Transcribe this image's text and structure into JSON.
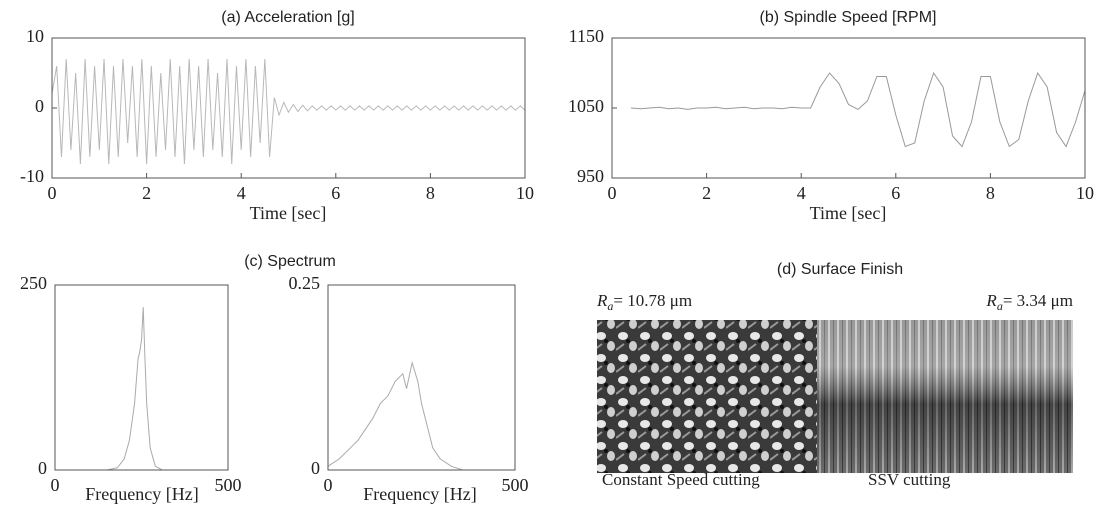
{
  "chart_data": [
    {
      "type": "line",
      "title": "(a) Acceleration  [g]",
      "x_label": "Time [sec]",
      "xlim": [
        0,
        10
      ],
      "xticks": [
        0,
        2,
        4,
        6,
        8,
        10
      ],
      "ylim": [
        -10,
        10
      ],
      "yticks": [
        -10,
        0,
        10
      ],
      "series": [
        {
          "color": "#b8b8b8",
          "x": [
            0,
            0.1,
            0.2,
            0.3,
            0.4,
            0.5,
            0.6,
            0.7,
            0.8,
            0.9,
            1,
            1.1,
            1.2,
            1.3,
            1.4,
            1.5,
            1.6,
            1.7,
            1.8,
            1.9,
            2,
            2.1,
            2.2,
            2.3,
            2.4,
            2.5,
            2.6,
            2.7,
            2.8,
            2.9,
            3,
            3.1,
            3.2,
            3.3,
            3.4,
            3.5,
            3.6,
            3.7,
            3.8,
            3.9,
            4,
            4.1,
            4.2,
            4.3,
            4.4,
            4.5,
            4.6,
            4.7,
            4.8,
            4.9,
            5,
            5.1,
            5.2,
            5.3,
            5.4,
            5.5,
            5.6,
            5.7,
            5.8,
            5.9,
            6,
            6.1,
            6.2,
            6.3,
            6.4,
            6.5,
            6.6,
            6.7,
            6.8,
            6.9,
            7,
            7.1,
            7.2,
            7.3,
            7.4,
            7.5,
            7.6,
            7.7,
            7.8,
            7.9,
            8,
            8.1,
            8.2,
            8.3,
            8.4,
            8.5,
            8.6,
            8.7,
            8.8,
            8.9,
            9,
            9.1,
            9.2,
            9.3,
            9.4,
            9.5,
            9.6,
            9.7,
            9.8,
            9.9,
            10
          ],
          "values": [
            2,
            6,
            -7,
            7,
            -6,
            5,
            -8,
            7,
            -7,
            6,
            -6,
            7,
            -8,
            6,
            -7,
            7,
            -5,
            6,
            -7,
            7,
            -8,
            6,
            -7,
            5,
            -6,
            7,
            -7,
            6,
            -8,
            7,
            -6,
            6,
            -7,
            7,
            -6,
            5,
            -7,
            7,
            -8,
            6,
            -6,
            7,
            -7,
            6,
            -5,
            7,
            -7,
            1.5,
            -1,
            0.8,
            -0.6,
            0.5,
            -0.5,
            0.4,
            -0.4,
            0.3,
            -0.3,
            0.3,
            -0.3,
            0.3,
            -0.3,
            0.3,
            -0.3,
            0.3,
            -0.3,
            0.3,
            -0.3,
            0.3,
            -0.3,
            0.3,
            -0.3,
            0.3,
            -0.3,
            0.3,
            -0.3,
            0.3,
            -0.3,
            0.3,
            -0.3,
            0.3,
            -0.3,
            0.3,
            -0.3,
            0.3,
            -0.3,
            0.3,
            -0.3,
            0.3,
            -0.3,
            0.3,
            -0.3,
            0.3,
            -0.3,
            0.3,
            -0.3,
            0.3,
            -0.3,
            0.3,
            -0.3,
            0.3,
            -0.3
          ]
        }
      ]
    },
    {
      "type": "line",
      "title": "(b) Spindle Speed  [RPM]",
      "x_label": "Time [sec]",
      "xlim": [
        0,
        10
      ],
      "xticks": [
        0,
        2,
        4,
        6,
        8,
        10
      ],
      "ylim": [
        950,
        1150
      ],
      "yticks": [
        950,
        1050,
        1150
      ],
      "series": [
        {
          "color": "#999999",
          "x": [
            0.4,
            0.6,
            0.8,
            1,
            1.2,
            1.4,
            1.6,
            1.8,
            2,
            2.2,
            2.4,
            2.6,
            2.8,
            3,
            3.2,
            3.4,
            3.6,
            3.8,
            4,
            4.2,
            4.4,
            4.6,
            4.8,
            5,
            5.2,
            5.4,
            5.6,
            5.8,
            6,
            6.2,
            6.4,
            6.6,
            6.8,
            7,
            7.2,
            7.4,
            7.6,
            7.8,
            8,
            8.2,
            8.4,
            8.6,
            8.8,
            9,
            9.2,
            9.4,
            9.6,
            9.8,
            10
          ],
          "values": [
            1050,
            1049,
            1050,
            1051,
            1049,
            1050,
            1048,
            1050,
            1050,
            1051,
            1049,
            1050,
            1051,
            1049,
            1050,
            1050,
            1049,
            1051,
            1050,
            1050,
            1080,
            1100,
            1085,
            1055,
            1048,
            1060,
            1095,
            1095,
            1040,
            995,
            1000,
            1060,
            1100,
            1080,
            1010,
            995,
            1030,
            1095,
            1095,
            1030,
            995,
            1005,
            1060,
            1100,
            1080,
            1015,
            995,
            1030,
            1075
          ]
        }
      ]
    },
    {
      "type": "line",
      "title": "(c) Spectrum",
      "x_label": "Frequency [Hz]",
      "xlim": [
        0,
        500
      ],
      "xticks": [
        0,
        500
      ],
      "ylim": [
        0,
        250
      ],
      "yticks": [
        0,
        250
      ],
      "series": [
        {
          "color": "#aaaaaa",
          "x": [
            150,
            180,
            200,
            215,
            230,
            240,
            245,
            250,
            255,
            260,
            265,
            275,
            290,
            310
          ],
          "values": [
            0,
            3,
            15,
            40,
            90,
            150,
            160,
            175,
            220,
            150,
            90,
            30,
            5,
            0
          ]
        }
      ]
    },
    {
      "type": "line",
      "x_label": "Frequency [Hz]",
      "xlim": [
        0,
        500
      ],
      "xticks": [
        0,
        500
      ],
      "ylim": [
        0,
        0.25
      ],
      "yticks": [
        0,
        0.25
      ],
      "series": [
        {
          "color": "#aaaaaa",
          "x": [
            0,
            30,
            60,
            80,
            100,
            120,
            140,
            160,
            180,
            200,
            210,
            225,
            240,
            250,
            265,
            280,
            300,
            330,
            360
          ],
          "values": [
            0.005,
            0.015,
            0.03,
            0.04,
            0.055,
            0.07,
            0.09,
            0.1,
            0.12,
            0.13,
            0.11,
            0.145,
            0.12,
            0.09,
            0.06,
            0.03,
            0.015,
            0.005,
            0
          ]
        }
      ]
    }
  ],
  "surface_finish": {
    "title": "(d) Surface Finish",
    "left": {
      "symbol": "R",
      "subscript": "a",
      "value": "= 10.78 μm",
      "caption": "Constant Speed cutting"
    },
    "right": {
      "symbol": "R",
      "subscript": "a",
      "value": "= 3.34 μm",
      "caption": "SSV cutting"
    }
  }
}
